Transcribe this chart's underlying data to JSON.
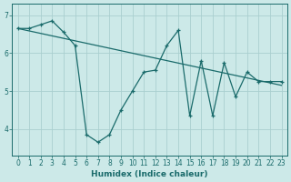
{
  "xlabel": "Humidex (Indice chaleur)",
  "ylabel": "",
  "background_color": "#cce9e8",
  "grid_color": "#aacfcf",
  "line_color": "#1a6b6b",
  "xlim": [
    -0.5,
    23.5
  ],
  "ylim": [
    3.3,
    7.3
  ],
  "yticks": [
    4,
    5,
    6,
    7
  ],
  "xticks": [
    0,
    1,
    2,
    3,
    4,
    5,
    6,
    7,
    8,
    9,
    10,
    11,
    12,
    13,
    14,
    15,
    16,
    17,
    18,
    19,
    20,
    21,
    22,
    23
  ],
  "series1_x": [
    0,
    1,
    2,
    3,
    4,
    5,
    6,
    7,
    8,
    9,
    10,
    11,
    12,
    13,
    14,
    15,
    16,
    17,
    18,
    19,
    20,
    21,
    22,
    23
  ],
  "series1_y": [
    6.65,
    6.65,
    6.75,
    6.85,
    6.55,
    6.2,
    3.85,
    3.65,
    3.85,
    4.5,
    5.0,
    5.5,
    5.55,
    6.2,
    6.6,
    4.35,
    5.8,
    4.35,
    5.75,
    4.85,
    5.5,
    5.25,
    5.25,
    5.25
  ],
  "series2_x": [
    0,
    23
  ],
  "series2_y": [
    6.65,
    5.15
  ],
  "tick_fontsize": 5.5,
  "label_fontsize": 6.5
}
